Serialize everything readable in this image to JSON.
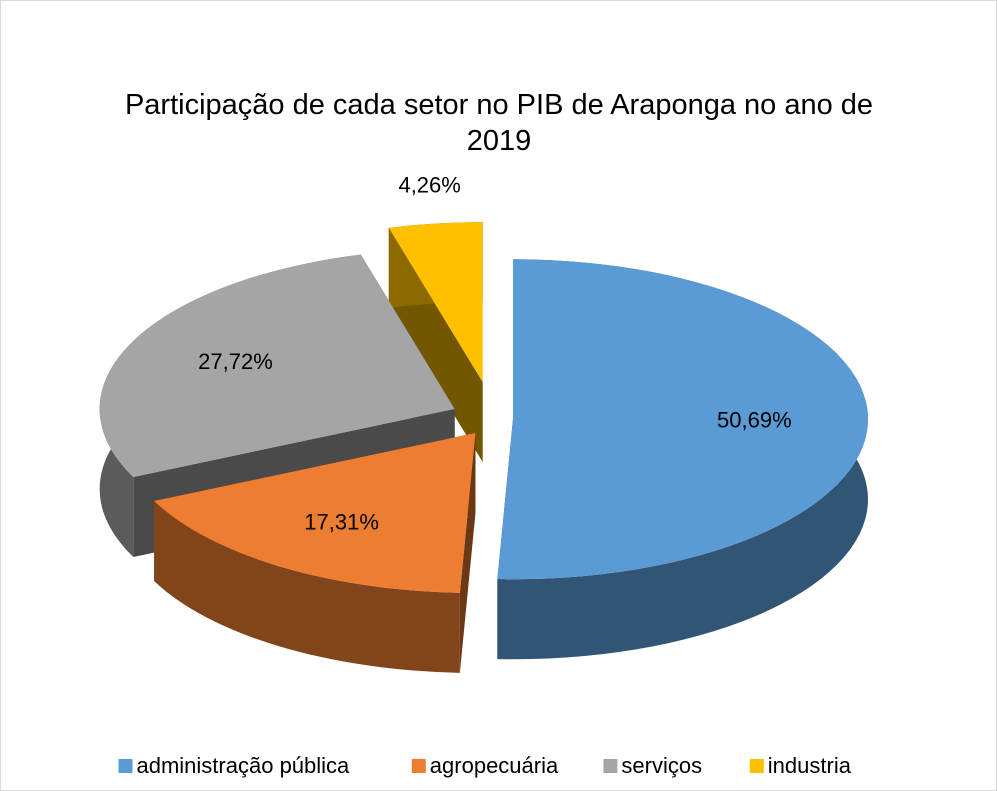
{
  "chart_data": {
    "type": "pie",
    "title": "Participação de cada setor no PIB de Araponga no ano de 2019",
    "categories": [
      "administração pública",
      "agropecuária",
      "serviços",
      "industria"
    ],
    "values": [
      50.69,
      17.31,
      27.72,
      4.26
    ],
    "value_labels": [
      "50,69%",
      "17,31%",
      "27,72%",
      "4,26%"
    ],
    "colors": [
      "#5b9bd5",
      "#ed7d31",
      "#a5a5a5",
      "#ffc000"
    ],
    "legend": "bottom"
  }
}
